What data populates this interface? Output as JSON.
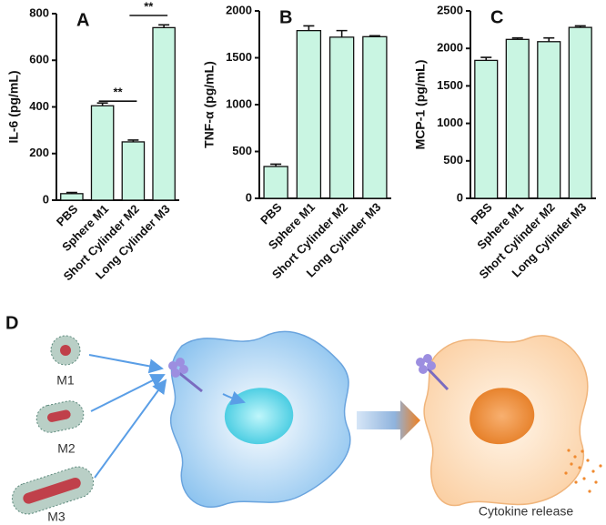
{
  "chart_data": [
    {
      "type": "bar",
      "panel": "A",
      "y_label": "IL-6 (pg/mL)",
      "categories": [
        "PBS",
        "Sphere M1",
        "Short Cylinder M2",
        "Long Cylinder M3"
      ],
      "values": [
        28,
        405,
        250,
        740
      ],
      "errors": [
        5,
        12,
        8,
        12
      ],
      "color": "#c9f5e2",
      "ylim": [
        0,
        800
      ],
      "yticks": [
        0,
        200,
        400,
        600,
        800
      ],
      "annotations": [
        "**",
        "**"
      ]
    },
    {
      "type": "bar",
      "panel": "B",
      "y_label": "TNF-α (pg/mL)",
      "categories": [
        "PBS",
        "Sphere M1",
        "Short Cylinder M2",
        "Long Cylinder M3"
      ],
      "values": [
        340,
        1790,
        1720,
        1725
      ],
      "errors": [
        25,
        50,
        70,
        10
      ],
      "color": "#c9f5e2",
      "ylim": [
        0,
        2000
      ],
      "yticks": [
        0,
        500,
        1000,
        1500,
        2000
      ]
    },
    {
      "type": "bar",
      "panel": "C",
      "y_label": "MCP-1 (pg/mL)",
      "categories": [
        "PBS",
        "Sphere M1",
        "Short Cylinder M2",
        "Long Cylinder M3"
      ],
      "values": [
        1840,
        2120,
        2090,
        2280
      ],
      "errors": [
        40,
        20,
        50,
        20
      ],
      "color": "#c9f5e2",
      "ylim": [
        0,
        2500
      ],
      "yticks": [
        0,
        500,
        1000,
        1500,
        2000,
        2500
      ]
    }
  ],
  "diagram": {
    "panel": "D",
    "labels": [
      "M1",
      "M2",
      "M3"
    ],
    "caption": "Cytokine release"
  }
}
